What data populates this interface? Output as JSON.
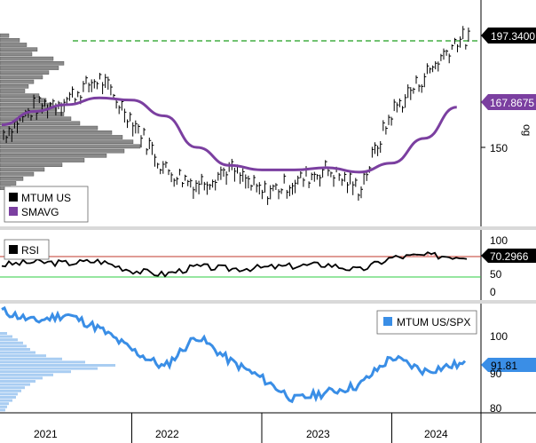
{
  "chart_data": [
    {
      "type": "line",
      "panel": "price",
      "series": [
        {
          "name": "MTUM US",
          "color": "#000000",
          "style": "bar (OHLC)",
          "x": [
            "2021-01",
            "2021-04",
            "2021-07",
            "2021-10",
            "2022-01",
            "2022-04",
            "2022-07",
            "2022-10",
            "2023-01",
            "2023-04",
            "2023-07",
            "2023-10",
            "2024-01",
            "2024-04",
            "2024-07"
          ],
          "y": [
            155,
            167,
            171,
            180,
            162,
            140,
            133,
            140,
            129,
            134,
            140,
            131,
            165,
            181,
            197.34
          ]
        },
        {
          "name": "SMAVG",
          "color": "#7b3fa0",
          "x": [
            "2021-01",
            "2021-04",
            "2021-07",
            "2021-10",
            "2022-01",
            "2022-04",
            "2022-07",
            "2022-10",
            "2023-01",
            "2023-04",
            "2023-07",
            "2023-10",
            "2024-01",
            "2024-04",
            "2024-07"
          ],
          "y": [
            160,
            166,
            169,
            172,
            171,
            164,
            150,
            142,
            140,
            140,
            141,
            139,
            143,
            154,
            167.8675
          ]
        }
      ],
      "last_values": {
        "price": "197.3400",
        "smavg": "167.8675"
      },
      "resistance_level": 197.34,
      "y_ticks": [
        "150"
      ],
      "y_label": "og",
      "legend": [
        "MTUM US",
        "SMAVG"
      ],
      "volume_profile": true,
      "colors": {
        "price": "#000000",
        "smavg": "#7b3fa0",
        "resistance": "#1f9e1f"
      }
    },
    {
      "type": "line",
      "panel": "rsi",
      "series": [
        {
          "name": "RSI",
          "color": "#000000",
          "x": [
            "2021-01",
            "2021-04",
            "2021-07",
            "2021-10",
            "2022-01",
            "2022-04",
            "2022-07",
            "2022-10",
            "2023-01",
            "2023-04",
            "2023-07",
            "2023-10",
            "2024-01",
            "2024-04",
            "2024-07"
          ],
          "y": [
            55,
            60,
            58,
            62,
            45,
            38,
            52,
            48,
            50,
            53,
            56,
            45,
            68,
            72,
            70.2966
          ]
        }
      ],
      "last_value": "70.2966",
      "overbought": 70,
      "oversold": 30,
      "y_ticks": [
        "100",
        "50",
        "0"
      ],
      "legend": [
        "RSI"
      ],
      "colors": {
        "overbought": "#c0392b",
        "oversold": "#2ecc40"
      }
    },
    {
      "type": "line",
      "panel": "relative",
      "series": [
        {
          "name": "MTUM US/SPX",
          "color": "#3a8ee6",
          "x": [
            "2021-01",
            "2021-04",
            "2021-07",
            "2021-10",
            "2022-01",
            "2022-04",
            "2022-07",
            "2022-10",
            "2023-01",
            "2023-04",
            "2023-07",
            "2023-10",
            "2024-01",
            "2024-04",
            "2024-07"
          ],
          "y": [
            107,
            104,
            106,
            102,
            96,
            91,
            100,
            93,
            88,
            82,
            84,
            86,
            94,
            90,
            91.81
          ]
        }
      ],
      "last_value": "91.81",
      "y_ticks": [
        "100",
        "90",
        "80"
      ],
      "legend": [
        "MTUM US/SPX"
      ],
      "volume_profile": true,
      "colors": {
        "line": "#3a8ee6",
        "profile": "#a9cdf2"
      }
    }
  ],
  "x_axis": {
    "labels": [
      "2021",
      "2022",
      "2023",
      "2024"
    ]
  },
  "labels": {
    "price_tag": "197.3400",
    "sma_tag": "167.8675",
    "price_axis_label": "og",
    "tick_150": "150",
    "rsi_tag": "70.2966",
    "rsi_100": "100",
    "rsi_50": "50",
    "rsi_0": "0",
    "rel_tag": "91.81",
    "rel_100": "100",
    "rel_90": "90",
    "rel_80": "80",
    "legend_mtum": "MTUM US",
    "legend_smavg": "SMAVG",
    "legend_rsi": "RSI",
    "legend_rel": "MTUM US/SPX",
    "year_2021": "2021",
    "year_2022": "2022",
    "year_2023": "2023",
    "year_2024": "2024"
  }
}
